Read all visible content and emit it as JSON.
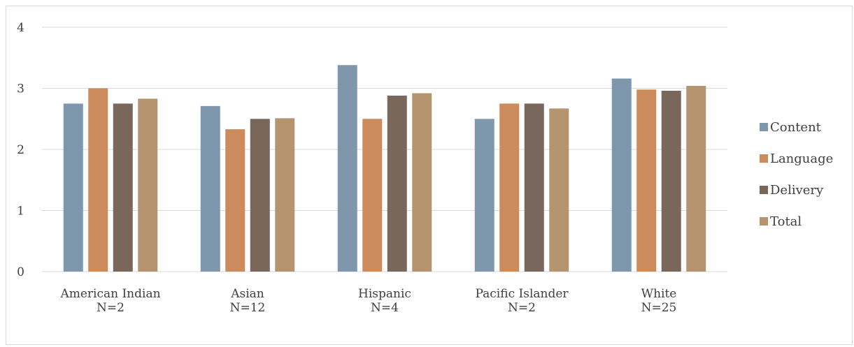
{
  "chart_data": {
    "type": "bar",
    "categories": [
      {
        "name": "American Indian",
        "n": "N=2"
      },
      {
        "name": "Asian",
        "n": "N=12"
      },
      {
        "name": "Hispanic",
        "n": "N=4"
      },
      {
        "name": "Pacific Islander",
        "n": "N=2"
      },
      {
        "name": "White",
        "n": "N=25"
      }
    ],
    "series": [
      {
        "name": "Content",
        "color": "#7f97ac",
        "values": [
          2.75,
          2.71,
          3.38,
          2.5,
          3.16
        ]
      },
      {
        "name": "Language",
        "color": "#cc8b5c",
        "values": [
          3.0,
          2.33,
          2.5,
          2.75,
          2.98
        ]
      },
      {
        "name": "Delivery",
        "color": "#79675c",
        "values": [
          2.75,
          2.5,
          2.88,
          2.75,
          2.96
        ]
      },
      {
        "name": "Total",
        "color": "#b59470",
        "values": [
          2.83,
          2.51,
          2.92,
          2.67,
          3.04
        ]
      }
    ],
    "ylim": [
      0,
      4
    ],
    "yticks": [
      "0",
      "1",
      "2",
      "3",
      "4"
    ],
    "grid": true,
    "legend_position": "right"
  }
}
